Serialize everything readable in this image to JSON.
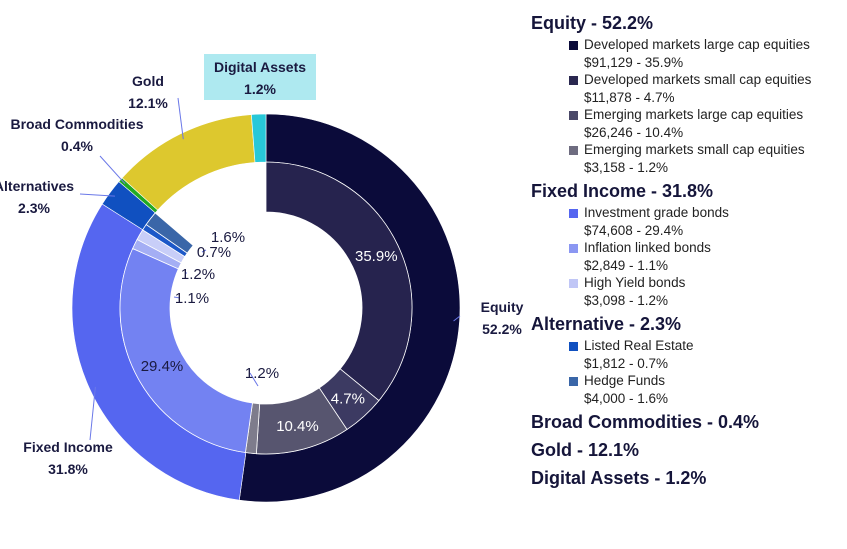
{
  "chart_data": {
    "type": "pie",
    "subtype": "nested-donut",
    "outer_ring": [
      {
        "name": "Equity",
        "value": 52.2,
        "label_name": "Equity",
        "label_value": "52.2%",
        "color": "#0b0b3a"
      },
      {
        "name": "Fixed Income",
        "value": 31.8,
        "label_name": "Fixed Income",
        "label_value": "31.8%",
        "color": "#5566f0"
      },
      {
        "name": "Alternatives",
        "value": 2.3,
        "label_name": "Alternatives",
        "label_value": "2.3%",
        "color": "#1050c0"
      },
      {
        "name": "Broad Commodities",
        "value": 0.4,
        "label_name": "Broad Commodities",
        "label_value": "0.4%",
        "color": "#22aa22"
      },
      {
        "name": "Gold",
        "value": 12.1,
        "label_name": "Gold",
        "label_value": "12.1%",
        "color": "#ddc82e"
      },
      {
        "name": "Digital Assets",
        "value": 1.2,
        "label_name": "Digital Assets",
        "label_value": "1.2%",
        "color": "#28c8d8"
      }
    ],
    "inner_ring": [
      {
        "value": 35.9,
        "label": "35.9%",
        "color": "#26234e"
      },
      {
        "value": 4.7,
        "label": "4.7%",
        "color": "#3c3a62"
      },
      {
        "value": 10.4,
        "label": "10.4%",
        "color": "#57556f"
      },
      {
        "value": 1.2,
        "label": "1.2%",
        "color": "#7e7c8c"
      },
      {
        "value": 29.4,
        "label": "29.4%",
        "color": "#7382f2"
      },
      {
        "value": 1.1,
        "label": "1.1%",
        "color": "#a4aef4"
      },
      {
        "value": 1.2,
        "label": "1.2%",
        "color": "#c8cef8"
      },
      {
        "value": 0.7,
        "label": "0.7%",
        "color": "#1c58c8"
      },
      {
        "value": 1.6,
        "label": "1.6%",
        "color": "#3a66a8"
      },
      {
        "value": 13.7,
        "label": "",
        "color": "#ffffff"
      }
    ]
  },
  "legend": [
    {
      "title": "Equity - 52.2%",
      "items": [
        {
          "name": "Developed markets large cap equities",
          "value": "$91,129 - 35.9%",
          "color": "#0b0b3a"
        },
        {
          "name": "Developed markets small cap equities",
          "value": "$11,878 - 4.7%",
          "color": "#2a2850"
        },
        {
          "name": "Emerging markets large cap equities",
          "value": "$26,246 - 10.4%",
          "color": "#4a4868"
        },
        {
          "name": "Emerging markets small cap equities",
          "value": "$3,158 - 1.2%",
          "color": "#6e6c80"
        }
      ]
    },
    {
      "title": "Fixed Income - 31.8%",
      "items": [
        {
          "name": "Investment grade bonds",
          "value": "$74,608 - 29.4%",
          "color": "#5566f0"
        },
        {
          "name": "Inflation linked bonds",
          "value": "$2,849 - 1.1%",
          "color": "#8b97f2"
        },
        {
          "name": "High Yield bonds",
          "value": "$3,098 - 1.2%",
          "color": "#c0c6f6"
        }
      ]
    },
    {
      "title": "Alternative - 2.3%",
      "items": [
        {
          "name": "Listed Real Estate",
          "value": "$1,812 - 0.7%",
          "color": "#1050c0"
        },
        {
          "name": "Hedge Funds",
          "value": "$4,000 - 1.6%",
          "color": "#3a66a8"
        }
      ]
    },
    {
      "title": "Broad Commodities - 0.4%",
      "items": []
    },
    {
      "title": "Gold - 12.1%",
      "items": []
    },
    {
      "title": "Digital Assets - 1.2%",
      "items": []
    }
  ]
}
